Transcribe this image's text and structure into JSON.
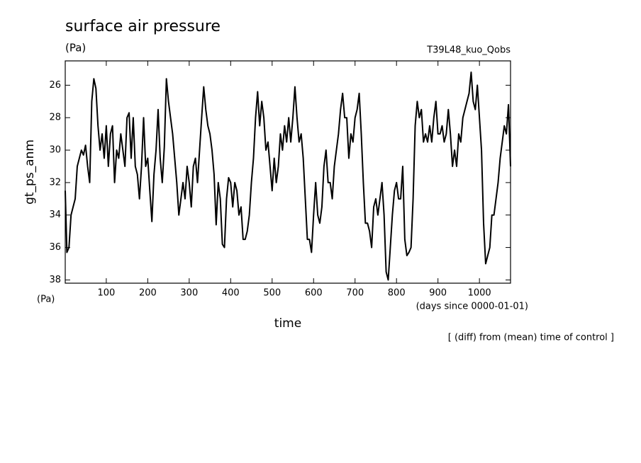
{
  "chart_data": {
    "type": "line",
    "title": "surface air pressure",
    "unit_label": "(Pa)",
    "experiment": "T39L48_kuo_Qobs",
    "y_label": "gt_ps_anm",
    "y_unit": "(Pa)",
    "x_unit": "(days since 0000-01-01)",
    "x_label": "time",
    "footnote": "[ (diff) from (mean) time of control ]",
    "color": "#000000",
    "xlim": [
      1,
      1075
    ],
    "ylim": [
      38.2,
      24.5
    ],
    "xticks": [
      100,
      200,
      300,
      400,
      500,
      600,
      700,
      800,
      900,
      1000
    ],
    "yticks": [
      26,
      28,
      30,
      32,
      34,
      36,
      38
    ],
    "x": [
      1,
      5,
      10,
      15,
      20,
      25,
      30,
      35,
      40,
      45,
      50,
      55,
      60,
      65,
      70,
      75,
      80,
      85,
      90,
      95,
      100,
      105,
      110,
      115,
      120,
      125,
      130,
      135,
      140,
      145,
      150,
      155,
      160,
      165,
      170,
      175,
      180,
      185,
      190,
      195,
      200,
      205,
      210,
      215,
      220,
      225,
      230,
      235,
      240,
      245,
      250,
      255,
      260,
      265,
      270,
      275,
      280,
      285,
      290,
      295,
      300,
      305,
      310,
      315,
      320,
      325,
      330,
      335,
      340,
      345,
      350,
      355,
      360,
      365,
      370,
      375,
      380,
      385,
      390,
      395,
      400,
      405,
      410,
      415,
      420,
      425,
      430,
      435,
      440,
      445,
      450,
      455,
      460,
      465,
      470,
      475,
      480,
      485,
      490,
      495,
      500,
      505,
      510,
      515,
      520,
      525,
      530,
      535,
      540,
      545,
      550,
      555,
      560,
      565,
      570,
      575,
      580,
      585,
      590,
      595,
      600,
      605,
      610,
      615,
      620,
      625,
      630,
      635,
      640,
      645,
      650,
      655,
      660,
      665,
      670,
      675,
      680,
      685,
      690,
      695,
      700,
      705,
      710,
      715,
      720,
      725,
      730,
      735,
      740,
      745,
      750,
      755,
      760,
      765,
      770,
      775,
      780,
      785,
      790,
      795,
      800,
      805,
      810,
      815,
      820,
      825,
      830,
      835,
      840,
      845,
      850,
      855,
      860,
      865,
      870,
      875,
      880,
      885,
      890,
      895,
      900,
      905,
      910,
      915,
      920,
      925,
      930,
      935,
      940,
      945,
      950,
      955,
      960,
      965,
      970,
      975,
      980,
      985,
      990,
      995,
      1000,
      1005,
      1010,
      1015,
      1020,
      1025,
      1030,
      1035,
      1040,
      1045,
      1050,
      1055,
      1060,
      1065,
      1070,
      1075
    ],
    "values": [
      32.5,
      36.3,
      36,
      34,
      33.5,
      33,
      31,
      30.5,
      30,
      30.3,
      29.7,
      31,
      32,
      27,
      25.6,
      26.2,
      28.5,
      30,
      29,
      30.5,
      28.5,
      31,
      29,
      28.5,
      32,
      30,
      30.5,
      29,
      30,
      31,
      28,
      27.7,
      30.5,
      28,
      31,
      31.5,
      33,
      31,
      28,
      31,
      30.5,
      32.5,
      34.4,
      31.5,
      30,
      27.5,
      30.5,
      32,
      29.8,
      25.6,
      27,
      28,
      29,
      30.5,
      32,
      34,
      33,
      32,
      33,
      31,
      32,
      33.5,
      31,
      30.5,
      32,
      30,
      28,
      26.1,
      27.5,
      28.5,
      29,
      30,
      31.5,
      34.6,
      32,
      33,
      35.8,
      36,
      33,
      31.7,
      32,
      33.5,
      32,
      32.5,
      34,
      33.5,
      35.5,
      35.5,
      35,
      34,
      32,
      30.5,
      28,
      26.4,
      28.5,
      27,
      28,
      30,
      29.5,
      31,
      32.5,
      30.5,
      32,
      31,
      29,
      30,
      28.5,
      29.5,
      28,
      29.5,
      28,
      26.1,
      28,
      29.5,
      29,
      30.5,
      33,
      35.5,
      35.5,
      36.3,
      34,
      32,
      34,
      34.5,
      33.5,
      31,
      30,
      32,
      32,
      33,
      31,
      30,
      29,
      27.5,
      26.5,
      28,
      28,
      30.5,
      29,
      29.5,
      28,
      27.5,
      26.5,
      29,
      32,
      34.5,
      34.5,
      35,
      36,
      33.5,
      33,
      34,
      33,
      32,
      34,
      37.5,
      38,
      36,
      34,
      32.5,
      32,
      33,
      33,
      31,
      35.5,
      36.5,
      36.3,
      36,
      33,
      28.5,
      27,
      28,
      27.5,
      29.5,
      29,
      29.5,
      28.5,
      29.5,
      28,
      27,
      29,
      29,
      28.5,
      29.5,
      29,
      27.5,
      29,
      31,
      30,
      31,
      29,
      29.5,
      28,
      27.5,
      27,
      26.5,
      25.2,
      27,
      27.5,
      26,
      28,
      30,
      34.5,
      37,
      36.5,
      36,
      34,
      34,
      33,
      32,
      30.5,
      29.5,
      28.5,
      29,
      27.2,
      31
    ]
  }
}
